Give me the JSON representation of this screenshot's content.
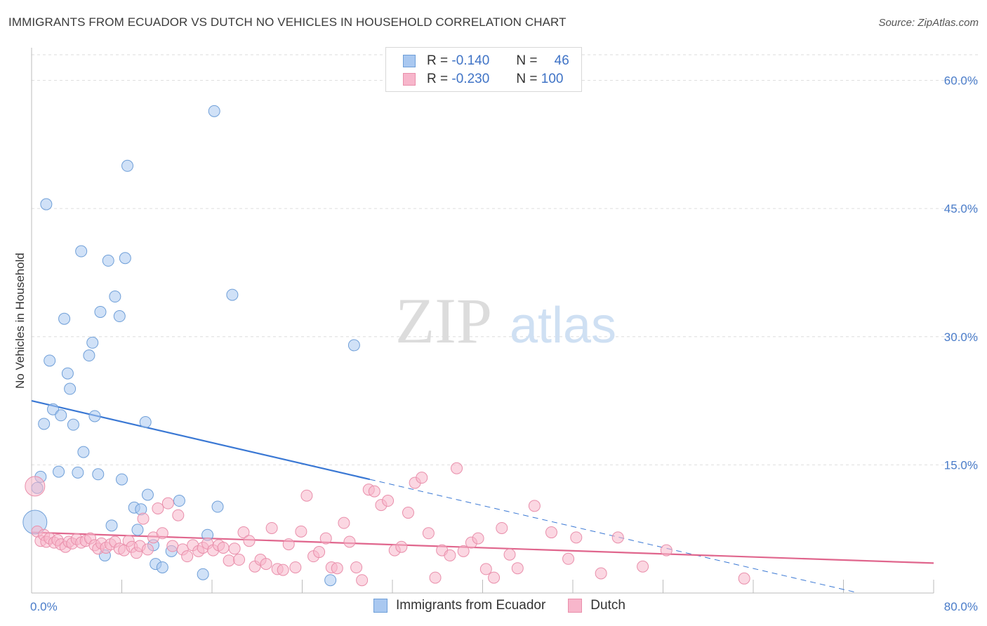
{
  "header": {
    "title": "IMMIGRANTS FROM ECUADOR VS DUTCH NO VEHICLES IN HOUSEHOLD CORRELATION CHART",
    "source": "Source: ZipAtlas.com"
  },
  "legend": {
    "rows": [
      {
        "r_label": "R =",
        "r_value": "-0.140",
        "n_label": "N =",
        "n_value": "46",
        "color": "#a9c8f0"
      },
      {
        "r_label": "R =",
        "r_value": "-0.230",
        "n_label": "N =",
        "n_value": "100",
        "color": "#f7b6cb"
      }
    ]
  },
  "watermark": {
    "zip": "ZIP",
    "atlas": "atlas"
  },
  "chart_data": {
    "type": "scatter",
    "ylabel": "No Vehicles in Household",
    "xlim": [
      0,
      80
    ],
    "ylim": [
      0,
      63
    ],
    "x_ticks": [
      {
        "value": 0,
        "label": "0.0%"
      },
      {
        "value": 80,
        "label": "80.0%"
      }
    ],
    "y_ticks": [
      {
        "value": 15,
        "label": "15.0%"
      },
      {
        "value": 30,
        "label": "30.0%"
      },
      {
        "value": 45,
        "label": "45.0%"
      },
      {
        "value": 60,
        "label": "60.0%"
      }
    ],
    "grid": true,
    "series": [
      {
        "name": "Immigrants from Ecuador",
        "color": "#a9c8f0",
        "stroke": "#6f9fd8",
        "trend": {
          "x0": 0,
          "y0": 22.5,
          "x1": 30,
          "y1": 13.3,
          "dash_to_x": 73,
          "color": "#3a78d4"
        },
        "points": [
          [
            0.3,
            8.3
          ],
          [
            0.5,
            12.3
          ],
          [
            0.8,
            13.6
          ],
          [
            1.1,
            19.8
          ],
          [
            1.3,
            45.5
          ],
          [
            1.6,
            27.2
          ],
          [
            1.9,
            21.5
          ],
          [
            2.4,
            14.2
          ],
          [
            2.6,
            20.8
          ],
          [
            2.9,
            32.1
          ],
          [
            3.2,
            25.7
          ],
          [
            3.4,
            23.9
          ],
          [
            3.7,
            19.7
          ],
          [
            4.1,
            14.1
          ],
          [
            4.4,
            40.0
          ],
          [
            4.6,
            16.5
          ],
          [
            5.1,
            27.8
          ],
          [
            5.4,
            29.3
          ],
          [
            5.6,
            20.7
          ],
          [
            5.9,
            13.9
          ],
          [
            6.1,
            32.9
          ],
          [
            6.5,
            4.4
          ],
          [
            6.8,
            38.9
          ],
          [
            7.1,
            7.9
          ],
          [
            7.4,
            34.7
          ],
          [
            7.8,
            32.4
          ],
          [
            8.0,
            13.3
          ],
          [
            8.3,
            39.2
          ],
          [
            8.5,
            50.0
          ],
          [
            9.1,
            10.0
          ],
          [
            9.4,
            7.4
          ],
          [
            9.7,
            9.8
          ],
          [
            10.1,
            20.0
          ],
          [
            10.3,
            11.5
          ],
          [
            10.8,
            5.6
          ],
          [
            11.0,
            3.4
          ],
          [
            11.6,
            3.0
          ],
          [
            12.4,
            4.9
          ],
          [
            13.1,
            10.8
          ],
          [
            15.2,
            2.2
          ],
          [
            15.6,
            6.8
          ],
          [
            16.2,
            56.4
          ],
          [
            16.5,
            10.1
          ],
          [
            17.8,
            34.9
          ],
          [
            26.5,
            1.5
          ],
          [
            28.6,
            29.0
          ]
        ]
      },
      {
        "name": "Dutch",
        "color": "#f7b6cb",
        "stroke": "#e98fab",
        "trend": {
          "x0": 0,
          "y0": 7.1,
          "x1": 80,
          "y1": 3.5,
          "color": "#e0668d"
        },
        "points": [
          [
            0.3,
            12.5
          ],
          [
            0.5,
            7.2
          ],
          [
            0.8,
            6.1
          ],
          [
            1.1,
            6.8
          ],
          [
            1.3,
            6.0
          ],
          [
            1.6,
            6.4
          ],
          [
            2.0,
            5.9
          ],
          [
            2.3,
            6.2
          ],
          [
            2.6,
            5.7
          ],
          [
            3.0,
            5.4
          ],
          [
            3.3,
            6.0
          ],
          [
            3.6,
            5.8
          ],
          [
            4.0,
            6.3
          ],
          [
            4.4,
            5.9
          ],
          [
            4.8,
            6.1
          ],
          [
            5.2,
            6.4
          ],
          [
            5.6,
            5.6
          ],
          [
            5.9,
            5.2
          ],
          [
            6.2,
            5.8
          ],
          [
            6.6,
            5.3
          ],
          [
            7.0,
            5.7
          ],
          [
            7.4,
            6.0
          ],
          [
            7.8,
            5.2
          ],
          [
            8.2,
            5.0
          ],
          [
            8.6,
            6.1
          ],
          [
            8.9,
            5.4
          ],
          [
            9.3,
            4.7
          ],
          [
            9.6,
            5.5
          ],
          [
            9.9,
            8.7
          ],
          [
            10.3,
            5.1
          ],
          [
            10.8,
            6.5
          ],
          [
            11.2,
            9.9
          ],
          [
            11.6,
            7.0
          ],
          [
            12.1,
            10.5
          ],
          [
            12.5,
            5.5
          ],
          [
            13.0,
            9.1
          ],
          [
            13.4,
            5.1
          ],
          [
            13.8,
            4.3
          ],
          [
            14.3,
            5.6
          ],
          [
            14.8,
            4.9
          ],
          [
            15.2,
            5.3
          ],
          [
            15.6,
            5.8
          ],
          [
            16.1,
            5.0
          ],
          [
            16.6,
            5.6
          ],
          [
            17.0,
            5.3
          ],
          [
            17.5,
            3.8
          ],
          [
            18.0,
            5.2
          ],
          [
            18.4,
            3.9
          ],
          [
            18.8,
            7.1
          ],
          [
            19.3,
            6.1
          ],
          [
            19.8,
            3.1
          ],
          [
            20.3,
            3.9
          ],
          [
            20.8,
            3.4
          ],
          [
            21.3,
            7.6
          ],
          [
            21.8,
            2.8
          ],
          [
            22.3,
            2.7
          ],
          [
            22.8,
            5.7
          ],
          [
            23.4,
            3.0
          ],
          [
            23.9,
            7.2
          ],
          [
            24.4,
            11.4
          ],
          [
            25.0,
            4.3
          ],
          [
            25.5,
            4.8
          ],
          [
            26.1,
            6.4
          ],
          [
            26.6,
            3.0
          ],
          [
            27.1,
            2.9
          ],
          [
            27.7,
            8.2
          ],
          [
            28.2,
            6.0
          ],
          [
            28.8,
            3.0
          ],
          [
            29.3,
            1.5
          ],
          [
            29.9,
            12.1
          ],
          [
            30.4,
            11.9
          ],
          [
            31.0,
            10.3
          ],
          [
            31.6,
            10.8
          ],
          [
            32.2,
            5.0
          ],
          [
            32.8,
            5.4
          ],
          [
            33.4,
            9.4
          ],
          [
            34.0,
            12.9
          ],
          [
            34.6,
            13.5
          ],
          [
            35.2,
            7.0
          ],
          [
            35.8,
            1.8
          ],
          [
            36.4,
            5.0
          ],
          [
            37.1,
            4.4
          ],
          [
            37.7,
            14.6
          ],
          [
            38.3,
            4.9
          ],
          [
            39.0,
            5.9
          ],
          [
            39.6,
            6.4
          ],
          [
            40.3,
            2.8
          ],
          [
            41.0,
            1.8
          ],
          [
            41.7,
            7.6
          ],
          [
            42.4,
            4.5
          ],
          [
            43.1,
            2.9
          ],
          [
            44.6,
            10.2
          ],
          [
            46.1,
            7.1
          ],
          [
            47.6,
            4.0
          ],
          [
            48.3,
            6.5
          ],
          [
            50.5,
            2.3
          ],
          [
            52.0,
            6.5
          ],
          [
            54.2,
            3.1
          ],
          [
            56.3,
            5.0
          ],
          [
            63.2,
            1.7
          ]
        ]
      }
    ]
  },
  "bottom_legend": {
    "items": [
      {
        "label": "Immigrants from Ecuador",
        "color": "#a9c8f0",
        "stroke": "#6f9fd8"
      },
      {
        "label": "Dutch",
        "color": "#f7b6cb",
        "stroke": "#e98fab"
      }
    ]
  }
}
